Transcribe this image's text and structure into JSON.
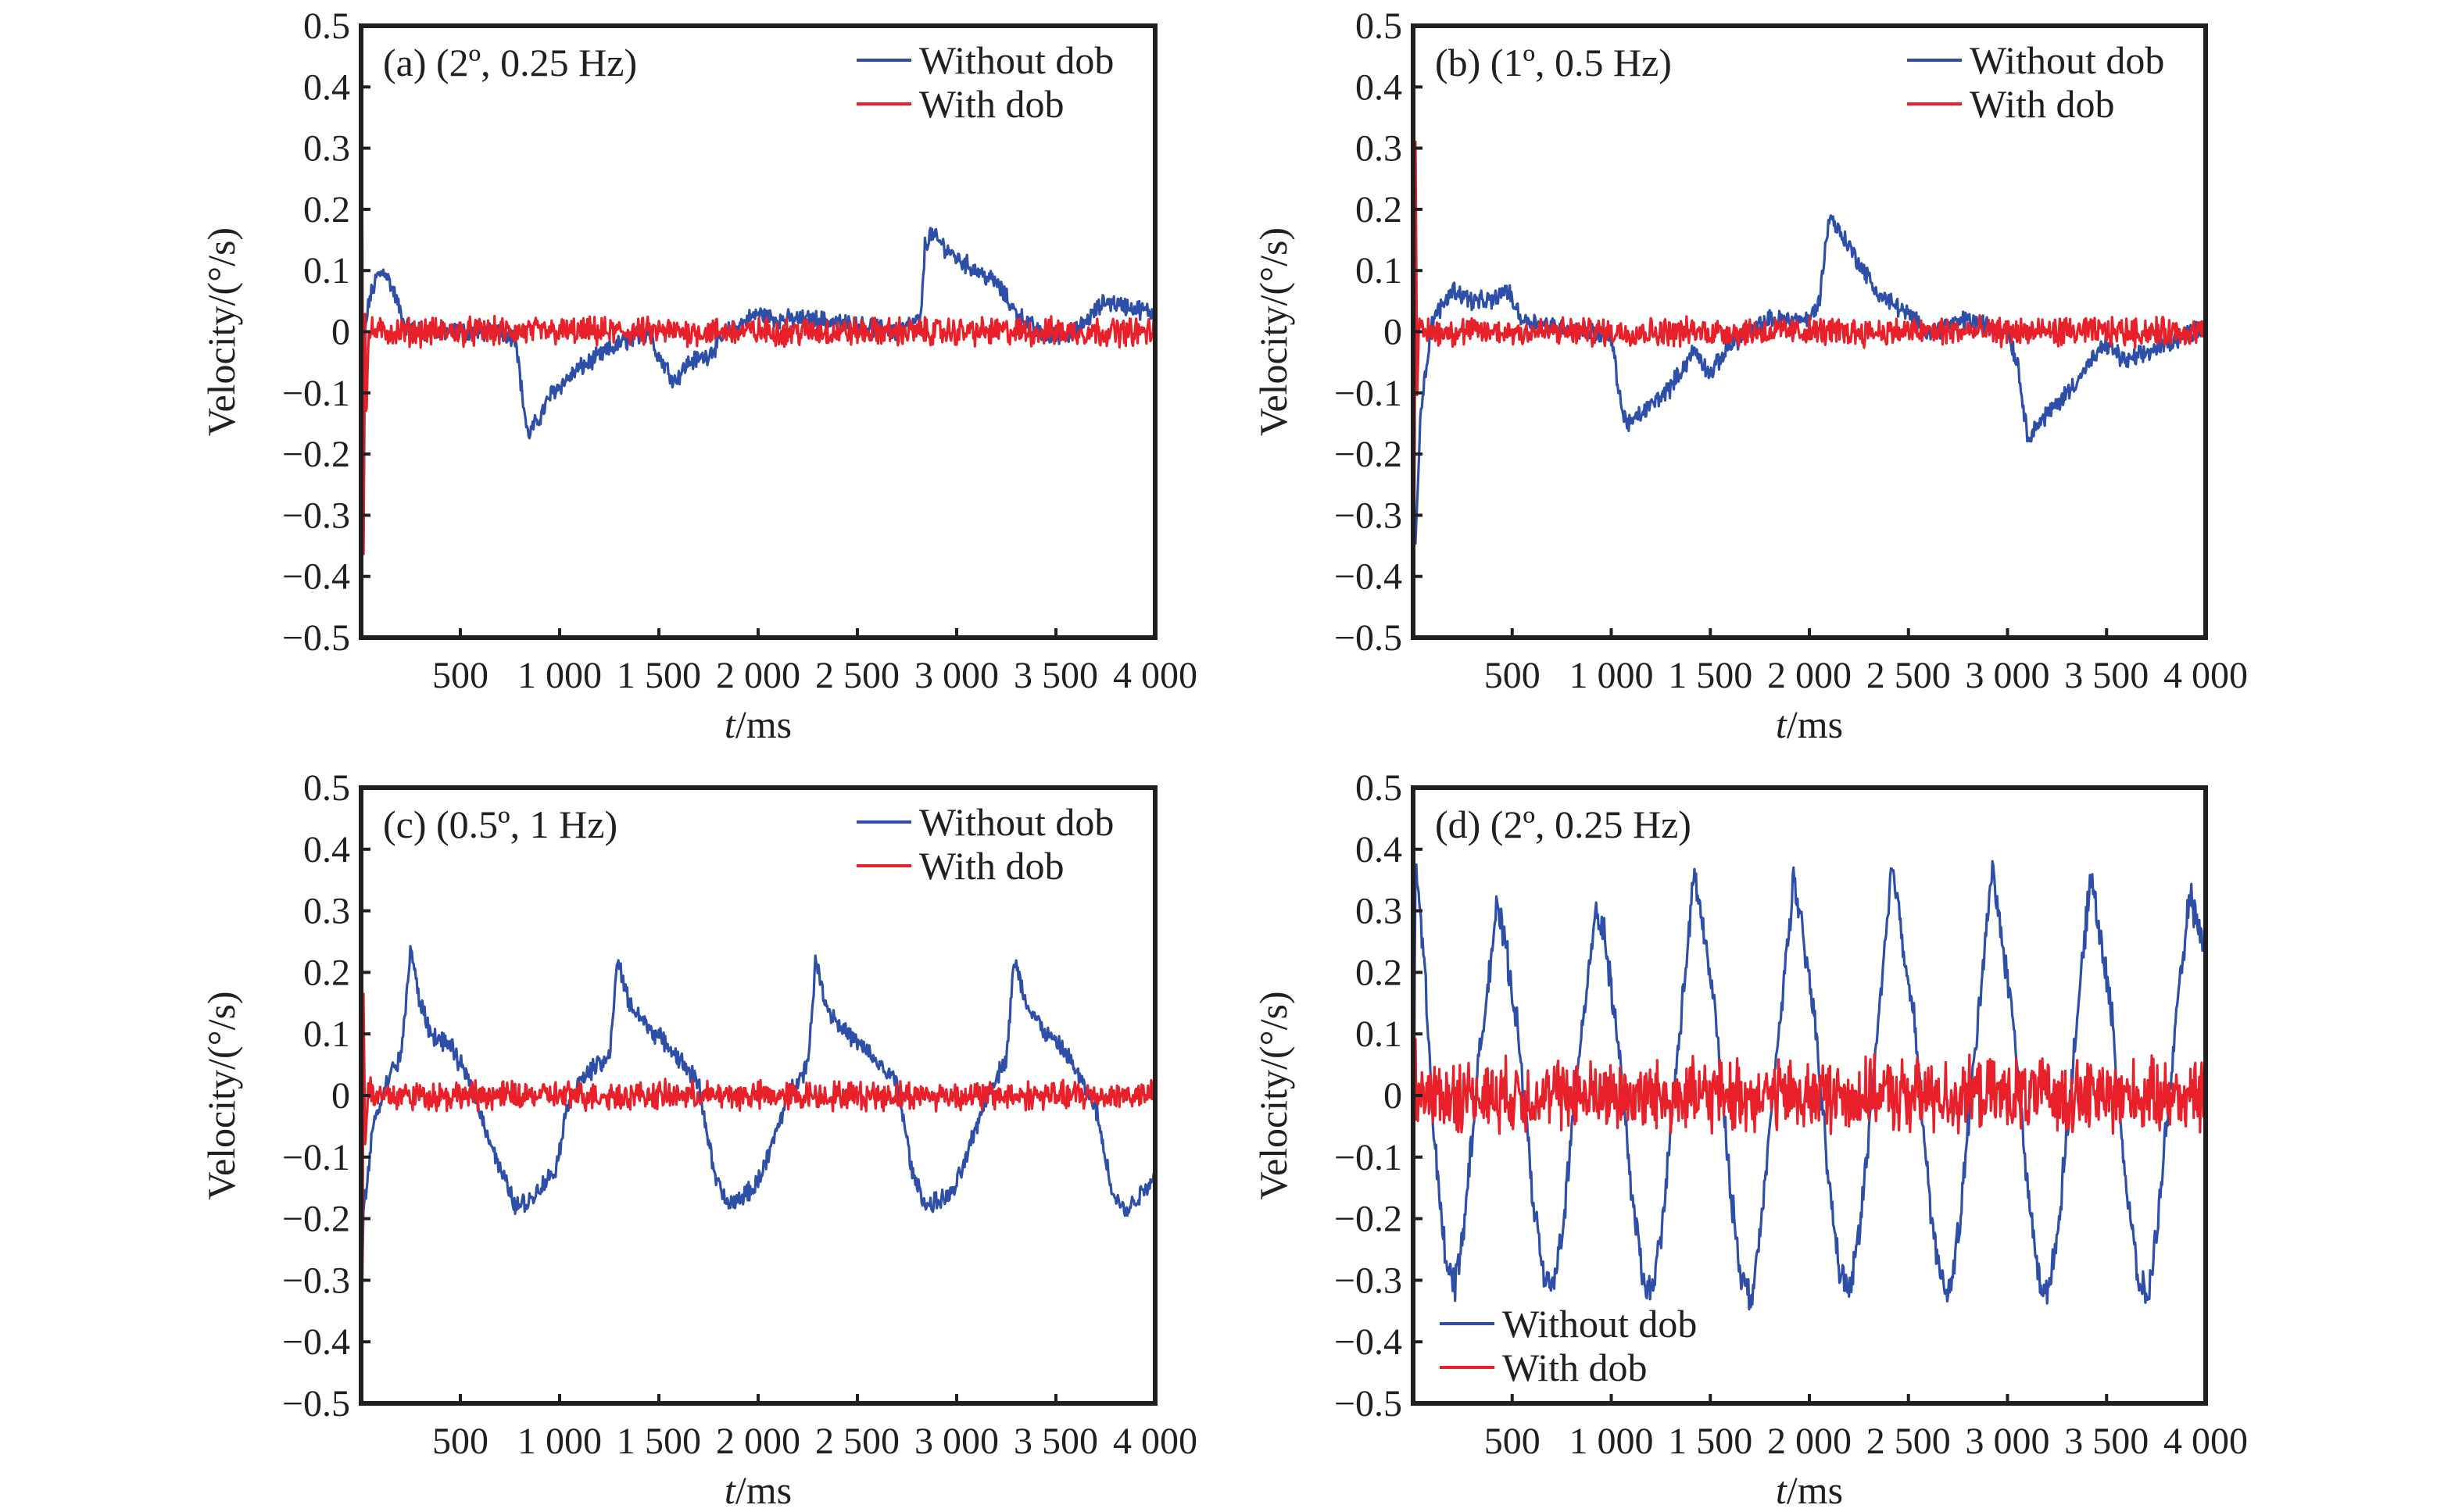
{
  "figure": {
    "layout": "2x2 grid",
    "shared_axes": {
      "xlabel_italic": "t",
      "xlabel_rest": "/ms",
      "ylabel": "Velocity/(°/s)",
      "xlim": [
        0,
        4000
      ],
      "ylim": [
        -0.5,
        0.5
      ],
      "xticks": [
        500,
        1000,
        1500,
        2000,
        2500,
        3000,
        3500,
        4000
      ],
      "xtick_labels": [
        "500",
        "1 000",
        "1 500",
        "2 000",
        "2 500",
        "3 000",
        "3 500",
        "4 000"
      ],
      "yticks": [
        0.5,
        0.4,
        0.3,
        0.2,
        0.1,
        0,
        -0.1,
        -0.2,
        -0.3,
        -0.4,
        -0.5
      ],
      "ytick_labels": [
        "0.5",
        "0.4",
        "0.3",
        "0.2",
        "0.1",
        "0",
        "−0.1",
        "−0.2",
        "−0.3",
        "−0.4",
        "−0.5"
      ]
    },
    "colors": {
      "without_dob": "#2e4fa8",
      "with_dob": "#e8202a",
      "axis": "#231f20"
    }
  },
  "chart_data": [
    {
      "type": "line",
      "panel": "a",
      "title": "(a) (2º, 0.25 Hz)",
      "xlabel": "t/ms",
      "ylabel": "Velocity/(°/s)",
      "xlim": [
        0,
        4000
      ],
      "ylim": [
        -0.5,
        0.5
      ],
      "grid": false,
      "legend_position": "top-right",
      "series": [
        {
          "name": "Without dob",
          "color": "#2e4fa8",
          "noise": 0.012,
          "x": [
            0,
            5,
            10,
            20,
            40,
            80,
            120,
            170,
            220,
            300,
            500,
            700,
            780,
            810,
            840,
            900,
            960,
            1100,
            1300,
            1450,
            1500,
            1580,
            1650,
            1740,
            1850,
            2000,
            2100,
            2300,
            2700,
            2820,
            2840,
            2870,
            3000,
            3200,
            3300,
            3450,
            3600,
            3750,
            4000
          ],
          "y": [
            0,
            0.45,
            -0.45,
            0,
            0.05,
            0.09,
            0.1,
            0.06,
            0.01,
            0.0,
            0.0,
            0.0,
            -0.01,
            -0.1,
            -0.17,
            -0.14,
            -0.1,
            -0.06,
            -0.02,
            0.0,
            -0.04,
            -0.08,
            -0.05,
            -0.04,
            0.0,
            0.03,
            0.02,
            0.02,
            0.0,
            0.02,
            0.14,
            0.16,
            0.12,
            0.08,
            0.03,
            -0.01,
            0.0,
            0.05,
            0.03
          ]
        },
        {
          "name": "With dob",
          "color": "#e8202a",
          "noise": 0.018,
          "x": [
            0,
            5,
            10,
            18,
            25,
            40,
            4000
          ],
          "y": [
            0,
            0.49,
            -0.5,
            0.08,
            -0.14,
            0.0,
            0.0
          ]
        }
      ]
    },
    {
      "type": "line",
      "panel": "b",
      "title": "(b) (1º, 0.5 Hz)",
      "xlabel": "t/ms",
      "ylabel": "Velocity/(°/s)",
      "xlim": [
        0,
        4000
      ],
      "ylim": [
        -0.5,
        0.5
      ],
      "grid": false,
      "legend_position": "top-right",
      "series": [
        {
          "name": "Without dob",
          "color": "#2e4fa8",
          "noise": 0.012,
          "x": [
            0,
            10,
            40,
            100,
            200,
            300,
            400,
            470,
            550,
            700,
            900,
            1000,
            1060,
            1100,
            1300,
            1420,
            1500,
            1600,
            1800,
            2000,
            2050,
            2100,
            2200,
            2350,
            2450,
            2600,
            2800,
            3000,
            3050,
            3100,
            3300,
            3420,
            3500,
            3600,
            4000
          ],
          "y": [
            -0.2,
            -0.35,
            -0.12,
            0.02,
            0.07,
            0.05,
            0.05,
            0.07,
            0.02,
            0.01,
            0.0,
            -0.01,
            -0.14,
            -0.15,
            -0.09,
            -0.03,
            -0.07,
            -0.02,
            0.02,
            0.02,
            0.05,
            0.19,
            0.14,
            0.06,
            0.04,
            0.0,
            0.02,
            0.0,
            -0.05,
            -0.17,
            -0.1,
            -0.05,
            -0.02,
            -0.05,
            0.01
          ]
        },
        {
          "name": "With dob",
          "color": "#e8202a",
          "noise": 0.018,
          "x": [
            0,
            5,
            12,
            20,
            30,
            4000
          ],
          "y": [
            0,
            -0.5,
            0.32,
            -0.1,
            0.0,
            0.0
          ]
        }
      ]
    },
    {
      "type": "line",
      "panel": "c",
      "title": "(c) (0.5º, 1 Hz)",
      "xlabel": "t/ms",
      "ylabel": "Velocity/(°/s)",
      "xlim": [
        0,
        4000
      ],
      "ylim": [
        -0.5,
        0.5
      ],
      "grid": false,
      "legend_position": "top-right",
      "series": [
        {
          "name": "Without dob",
          "color": "#2e4fa8",
          "noise": 0.012,
          "x": [
            0,
            10,
            60,
            150,
            200,
            250,
            290,
            350,
            450,
            550,
            700,
            780,
            850,
            980,
            1050,
            1150,
            1250,
            1290,
            1350,
            1450,
            1550,
            1700,
            1780,
            1850,
            1980,
            2050,
            2150,
            2250,
            2290,
            2350,
            2450,
            2550,
            2700,
            2780,
            2850,
            2980,
            3050,
            3150,
            3250,
            3290,
            3350,
            3450,
            3550,
            3700,
            3780,
            3850,
            4000
          ],
          "y": [
            -0.45,
            -0.2,
            -0.05,
            0.04,
            0.06,
            0.24,
            0.16,
            0.1,
            0.08,
            0.02,
            -0.12,
            -0.18,
            -0.17,
            -0.12,
            0.0,
            0.04,
            0.06,
            0.22,
            0.15,
            0.11,
            0.08,
            0.02,
            -0.13,
            -0.18,
            -0.15,
            -0.1,
            0.0,
            0.05,
            0.22,
            0.14,
            0.1,
            0.07,
            0.02,
            -0.13,
            -0.18,
            -0.16,
            -0.1,
            0.0,
            0.06,
            0.22,
            0.15,
            0.1,
            0.07,
            -0.02,
            -0.15,
            -0.19,
            -0.13
          ]
        },
        {
          "name": "With dob",
          "color": "#e8202a",
          "noise": 0.018,
          "x": [
            0,
            5,
            12,
            20,
            35,
            60,
            4000
          ],
          "y": [
            0,
            -0.5,
            0.18,
            -0.08,
            0.02,
            0.0,
            0.0
          ]
        }
      ]
    },
    {
      "type": "line",
      "panel": "d",
      "title": "(d) (2º, 0.25 Hz)",
      "xlabel": "t/ms",
      "ylabel": "Velocity/(°/s)",
      "xlim": [
        0,
        4000
      ],
      "ylim": [
        -0.5,
        0.5
      ],
      "grid": false,
      "legend_position": "bottom-left",
      "series": [
        {
          "name": "Without dob",
          "color": "#2e4fa8",
          "noise": 0.02,
          "period_ms": 500,
          "x": [
            0,
            10,
            25,
            60,
            100,
            160,
            210,
            260,
            330,
            420,
            460,
            530,
            600,
            660,
            710,
            760,
            830,
            920,
            960,
            1030,
            1100,
            1160,
            1210,
            1260,
            1330,
            1420,
            1460,
            1530,
            1600,
            1660,
            1710,
            1760,
            1830,
            1920,
            1960,
            2030,
            2100,
            2160,
            2210,
            2260,
            2330,
            2420,
            2460,
            2530,
            2600,
            2660,
            2710,
            2760,
            2830,
            2920,
            2960,
            3030,
            3100,
            3160,
            3210,
            3260,
            3330,
            3420,
            3460,
            3530,
            3600,
            3660,
            3710,
            3760,
            3830,
            3920,
            3960,
            4000
          ],
          "y": [
            -0.5,
            0.37,
            0.34,
            0.2,
            -0.05,
            -0.25,
            -0.31,
            -0.2,
            0.05,
            0.3,
            0.26,
            0.1,
            -0.15,
            -0.3,
            -0.31,
            -0.2,
            0.05,
            0.3,
            0.27,
            0.1,
            -0.15,
            -0.3,
            -0.32,
            -0.2,
            0.05,
            0.36,
            0.28,
            0.12,
            -0.15,
            -0.3,
            -0.33,
            -0.2,
            0.05,
            0.35,
            0.27,
            0.12,
            -0.15,
            -0.3,
            -0.31,
            -0.2,
            0.05,
            0.38,
            0.28,
            0.12,
            -0.15,
            -0.3,
            -0.32,
            -0.2,
            0.05,
            0.37,
            0.28,
            0.12,
            -0.15,
            -0.3,
            -0.32,
            -0.2,
            0.05,
            0.36,
            0.28,
            0.12,
            -0.15,
            -0.3,
            -0.33,
            -0.2,
            0.05,
            0.33,
            0.27,
            0.25
          ]
        },
        {
          "name": "With dob",
          "color": "#e8202a",
          "noise": 0.045,
          "x": [
            0,
            5,
            15,
            4000
          ],
          "y": [
            -0.2,
            0.12,
            0.0,
            0.0
          ]
        }
      ]
    }
  ]
}
